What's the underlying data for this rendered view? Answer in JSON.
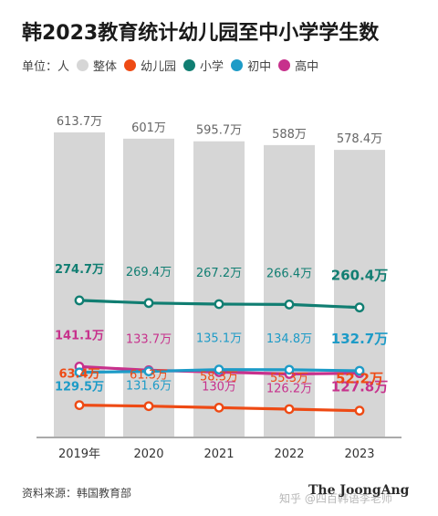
{
  "title": "韩2023教育统计幼儿园至中小学学生数",
  "legend": {
    "unit_label": "单位：人",
    "items": [
      {
        "label": "整体",
        "color": "#d6d6d6"
      },
      {
        "label": "幼儿园",
        "color": "#ee4a14"
      },
      {
        "label": "小学",
        "color": "#117e72"
      },
      {
        "label": "初中",
        "color": "#1d9bc7"
      },
      {
        "label": "高中",
        "color": "#c7318c"
      }
    ]
  },
  "source": "资料来源：韩国教育部",
  "brand": "The JoongAng",
  "watermark": "知乎 @四百韩语李老师",
  "chart_data": {
    "type": "bar",
    "categories": [
      "2019年",
      "2020",
      "2021",
      "2022",
      "2023"
    ],
    "ylim": [
      0,
      700
    ],
    "total": {
      "name": "整体",
      "color": "#d6d6d6",
      "values": [
        613.7,
        601,
        595.7,
        588,
        578.4
      ],
      "labels": [
        "613.7万",
        "601万",
        "595.7万",
        "588万",
        "578.4万"
      ]
    },
    "series": [
      {
        "name": "小学",
        "type": "line",
        "color": "#117e72",
        "values": [
          274.7,
          269.4,
          267.2,
          266.4,
          260.4
        ],
        "labels": [
          "274.7万",
          "269.4万",
          "267.2万",
          "266.4万",
          "260.4万"
        ],
        "label_pos": "above"
      },
      {
        "name": "高中",
        "type": "line",
        "color": "#c7318c",
        "values": [
          141.1,
          133.7,
          130,
          126.2,
          127.8
        ],
        "labels": [
          "141.1万",
          "133.7万",
          "130万",
          "126.2万",
          "127.8万"
        ],
        "label_pos": "mixed"
      },
      {
        "name": "初中",
        "type": "line",
        "color": "#1d9bc7",
        "values": [
          129.5,
          131.6,
          135.1,
          134.8,
          132.7
        ],
        "labels": [
          "129.5万",
          "131.6万",
          "135.1万",
          "134.8万",
          "132.7万"
        ],
        "label_pos": "mixed"
      },
      {
        "name": "幼儿园",
        "type": "line",
        "color": "#ee4a14",
        "values": [
          63.4,
          61.3,
          58.3,
          55.3,
          52.2
        ],
        "labels": [
          "63.4万",
          "61.3万",
          "58.3万",
          "55.3万",
          "52.2万"
        ],
        "label_pos": "above"
      }
    ]
  }
}
